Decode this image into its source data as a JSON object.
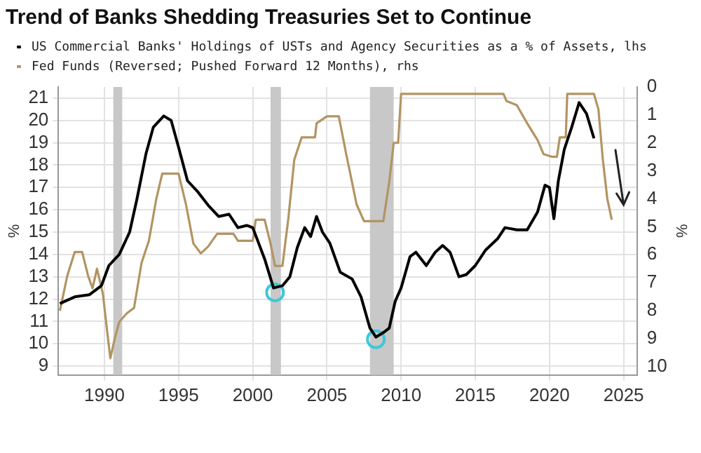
{
  "chart_data": {
    "type": "line",
    "title": "Trend of Banks Shedding Treasuries Set to Continue",
    "ylabel": "%",
    "y2label": "%",
    "xlim": [
      1986.9,
      2025.9
    ],
    "xticks": [
      1990,
      1995,
      2000,
      2005,
      2010,
      2015,
      2020,
      2025
    ],
    "ylim": [
      8.6,
      21.5
    ],
    "yticks": [
      9,
      10,
      11,
      12,
      13,
      14,
      15,
      16,
      17,
      18,
      19,
      20,
      21
    ],
    "y2lim": [
      10.3,
      0
    ],
    "y2ticks": [
      0,
      1,
      2,
      3,
      4,
      5,
      6,
      7,
      8,
      9,
      10
    ],
    "grid": true,
    "legend": "top left",
    "marker": "none",
    "line_style": "solid",
    "bands": [
      {
        "axis": "x",
        "from": 1990.6,
        "to": 1991.2,
        "color": "#c8c8c8"
      },
      {
        "axis": "x",
        "from": 2001.2,
        "to": 2001.9,
        "color": "#c8c8c8"
      },
      {
        "axis": "x",
        "from": 2007.9,
        "to": 2009.5,
        "color": "#c8c8c8"
      }
    ],
    "series": [
      {
        "name": "US Commercial Banks' Holdings of USTs and Agency Securities as a % of Assets, lhs",
        "color": "#000000",
        "axis": "y",
        "x": [
          1987.0,
          1988,
          1989,
          1989.8,
          1990.3,
          1991,
          1991.7,
          1992.2,
          1992.8,
          1993.3,
          1994,
          1994.5,
          1995,
          1995.6,
          1996.3,
          1997,
          1997.7,
          1998.4,
          1999,
          1999.6,
          2000,
          2000.8,
          2001.4,
          2002,
          2002.5,
          2003,
          2003.5,
          2003.9,
          2004.3,
          2004.7,
          2005.2,
          2005.9,
          2006.7,
          2007.3,
          2007.9,
          2008.3,
          2008.8,
          2009.2,
          2009.6,
          2010,
          2010.6,
          2011,
          2011.7,
          2012.3,
          2012.8,
          2013.3,
          2013.9,
          2014.4,
          2015,
          2015.7,
          2016.5,
          2017,
          2017.8,
          2018.5,
          2019.2,
          2019.7,
          2020,
          2020.3,
          2020.6,
          2021,
          2021.5,
          2022,
          2022.5,
          2023
        ],
        "values": [
          11.8,
          12.1,
          12.2,
          12.6,
          13.5,
          14.0,
          15.0,
          16.5,
          18.5,
          19.7,
          20.2,
          20.0,
          18.8,
          17.3,
          16.8,
          16.2,
          15.7,
          15.8,
          15.2,
          15.3,
          15.2,
          13.8,
          12.5,
          12.6,
          13.0,
          14.3,
          15.2,
          14.8,
          15.7,
          15.0,
          14.5,
          13.2,
          12.9,
          12.1,
          10.7,
          10.3,
          10.5,
          10.7,
          11.9,
          12.5,
          13.9,
          14.1,
          13.5,
          14.1,
          14.4,
          14.1,
          13.0,
          13.1,
          13.5,
          14.2,
          14.7,
          15.2,
          15.1,
          15.1,
          15.9,
          17.1,
          17.0,
          15.6,
          17.3,
          18.7,
          19.7,
          20.8,
          20.3,
          19.2
        ]
      },
      {
        "type": "scatter",
        "marker": "circle",
        "color": "#3cc8d8",
        "axis": "y",
        "x": [
          2001.5,
          2008.3
        ],
        "values": [
          12.3,
          10.2
        ]
      },
      {
        "name": "Fed Funds (Reversed; Pushed Forward 12 Months), rhs",
        "color": "#b39463",
        "axis": "y2",
        "x": [
          1987.0,
          1987.5,
          1988,
          1988.5,
          1988.9,
          1989.2,
          1989.5,
          1989.9,
          1990.2,
          1990.4,
          1990.7,
          1991,
          1991.5,
          1992,
          1992.5,
          1993,
          1993.5,
          1993.9,
          1995,
          1995.5,
          1996,
          1996.5,
          1997,
          1997.6,
          1998.7,
          1999,
          2000,
          2000.2,
          2000.8,
          2001.2,
          2001.5,
          2002,
          2002.4,
          2002.8,
          2003.3,
          2004.2,
          2004.3,
          2005,
          2005.8,
          2006.3,
          2007,
          2007.5,
          2008.8,
          2009.2,
          2009.5,
          2009.8,
          2010,
          2016.9,
          2017.1,
          2017.8,
          2018.5,
          2019.2,
          2019.6,
          2020.2,
          2020.5,
          2020.7,
          2021.1,
          2021.2,
          2023,
          2023.3,
          2023.6,
          2023.9,
          2024.2
        ],
        "values": [
          8.0,
          6.75,
          5.9,
          5.9,
          6.75,
          7.2,
          6.5,
          7.4,
          8.8,
          9.7,
          9.0,
          8.4,
          8.1,
          7.9,
          6.3,
          5.5,
          4.0,
          3.1,
          3.1,
          4.2,
          5.6,
          5.95,
          5.7,
          5.25,
          5.25,
          5.5,
          5.5,
          4.75,
          4.75,
          5.6,
          6.4,
          6.4,
          4.7,
          2.6,
          1.8,
          1.8,
          1.3,
          1.05,
          1.05,
          2.4,
          4.2,
          4.8,
          4.8,
          3.4,
          2.0,
          2.0,
          0.25,
          0.25,
          0.5,
          0.65,
          1.3,
          1.9,
          2.4,
          2.5,
          2.5,
          1.8,
          1.8,
          0.25,
          0.25,
          0.8,
          2.6,
          4.0,
          4.75
        ]
      }
    ]
  }
}
